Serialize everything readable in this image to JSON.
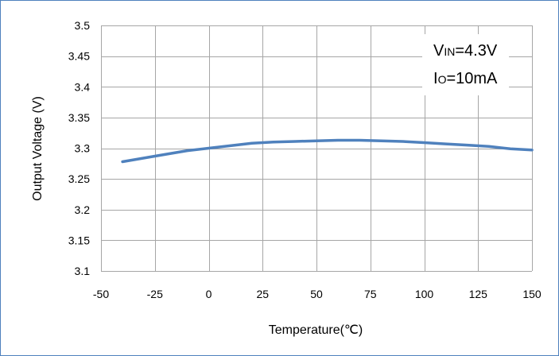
{
  "chart_data": {
    "type": "line",
    "title": "",
    "xlabel": "Temperature(℃)",
    "ylabel": "Output Voltage (V)",
    "xlim": [
      -50,
      150
    ],
    "ylim": [
      3.1,
      3.5
    ],
    "xticks": [
      -50,
      -25,
      0,
      25,
      50,
      75,
      100,
      125,
      150
    ],
    "yticks": [
      3.1,
      3.15,
      3.2,
      3.25,
      3.3,
      3.35,
      3.4,
      3.45,
      3.5
    ],
    "xtick_labels": [
      "-50",
      "-25",
      "0",
      "25",
      "50",
      "75",
      "100",
      "125",
      "150"
    ],
    "ytick_labels": [
      "3.1",
      "3.15",
      "3.2",
      "3.25",
      "3.3",
      "3.35",
      "3.4",
      "3.45",
      "3.5"
    ],
    "grid": true,
    "series": [
      {
        "color": "#4f81bd",
        "x": [
          -40,
          -25,
          -10,
          0,
          10,
          20,
          30,
          40,
          50,
          60,
          70,
          80,
          90,
          100,
          110,
          120,
          130,
          140,
          150
        ],
        "y": [
          3.278,
          3.287,
          3.296,
          3.3,
          3.304,
          3.308,
          3.31,
          3.311,
          3.312,
          3.313,
          3.313,
          3.312,
          3.311,
          3.309,
          3.307,
          3.305,
          3.303,
          3.299,
          3.297
        ]
      }
    ],
    "annotations": [
      {
        "main": "V",
        "sub": "IN",
        "rest": "=4.3V"
      },
      {
        "main": "I",
        "sub": "O",
        "rest": "=10mA"
      }
    ]
  }
}
